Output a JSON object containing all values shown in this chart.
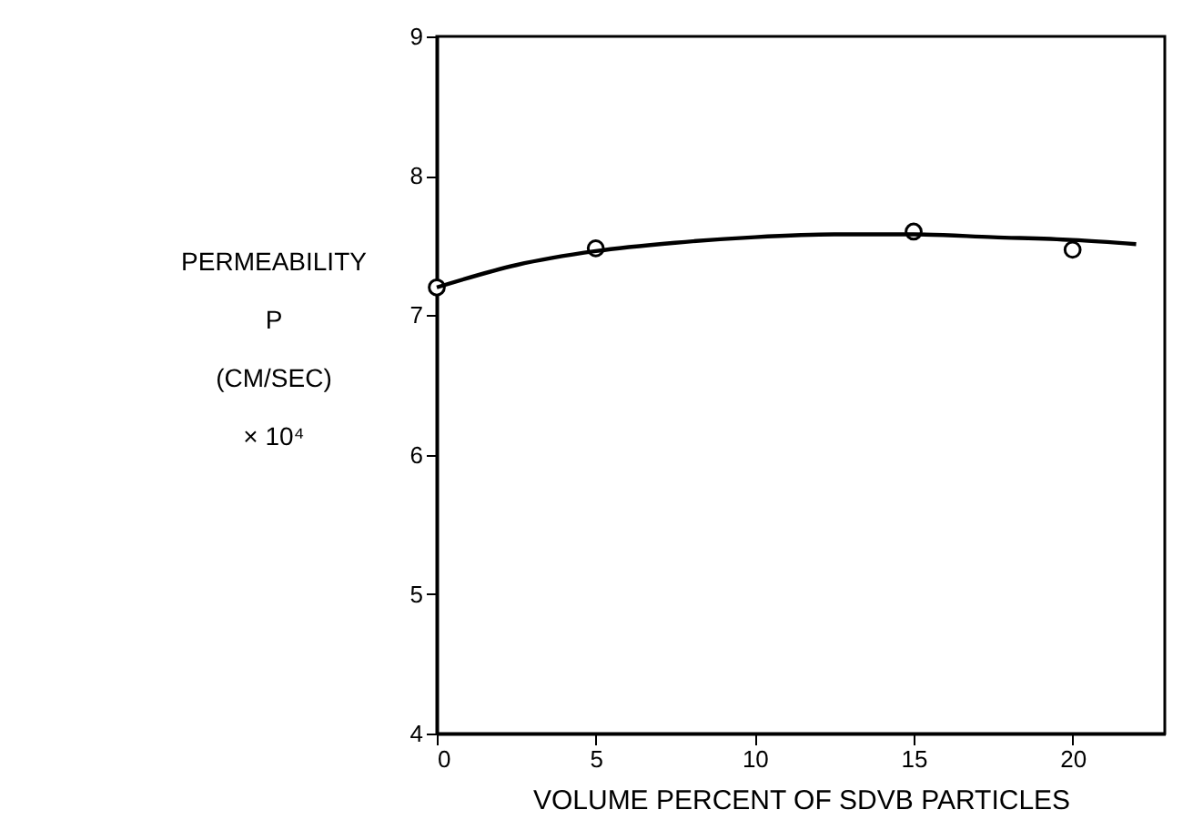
{
  "chart_data": {
    "type": "scatter",
    "xlabel": "VOLUME PERCENT OF SDVB PARTICLES",
    "ylabel": "PERMEABILITY\nP\n(CM/SEC)\n× 10⁴",
    "xlim": [
      0,
      22.9
    ],
    "xticks": [
      0,
      5,
      10,
      15,
      20
    ],
    "ylim": [
      4,
      9
    ],
    "yticks": [
      4,
      5,
      6,
      7,
      8,
      9
    ],
    "grid": false,
    "series": [
      {
        "marker": "circle",
        "color": "#000000",
        "x": [
          0,
          5,
          15,
          20
        ],
        "values": [
          7.2,
          7.48,
          7.6,
          7.47
        ]
      },
      {
        "type": "line",
        "marker": "none",
        "color": "#000000",
        "line_style": "solid",
        "x": [
          0,
          2.5,
          5,
          7.5,
          10,
          12.5,
          15,
          17.5,
          20,
          22
        ],
        "values": [
          7.2,
          7.36,
          7.46,
          7.52,
          7.56,
          7.58,
          7.58,
          7.56,
          7.54,
          7.51
        ]
      }
    ]
  }
}
